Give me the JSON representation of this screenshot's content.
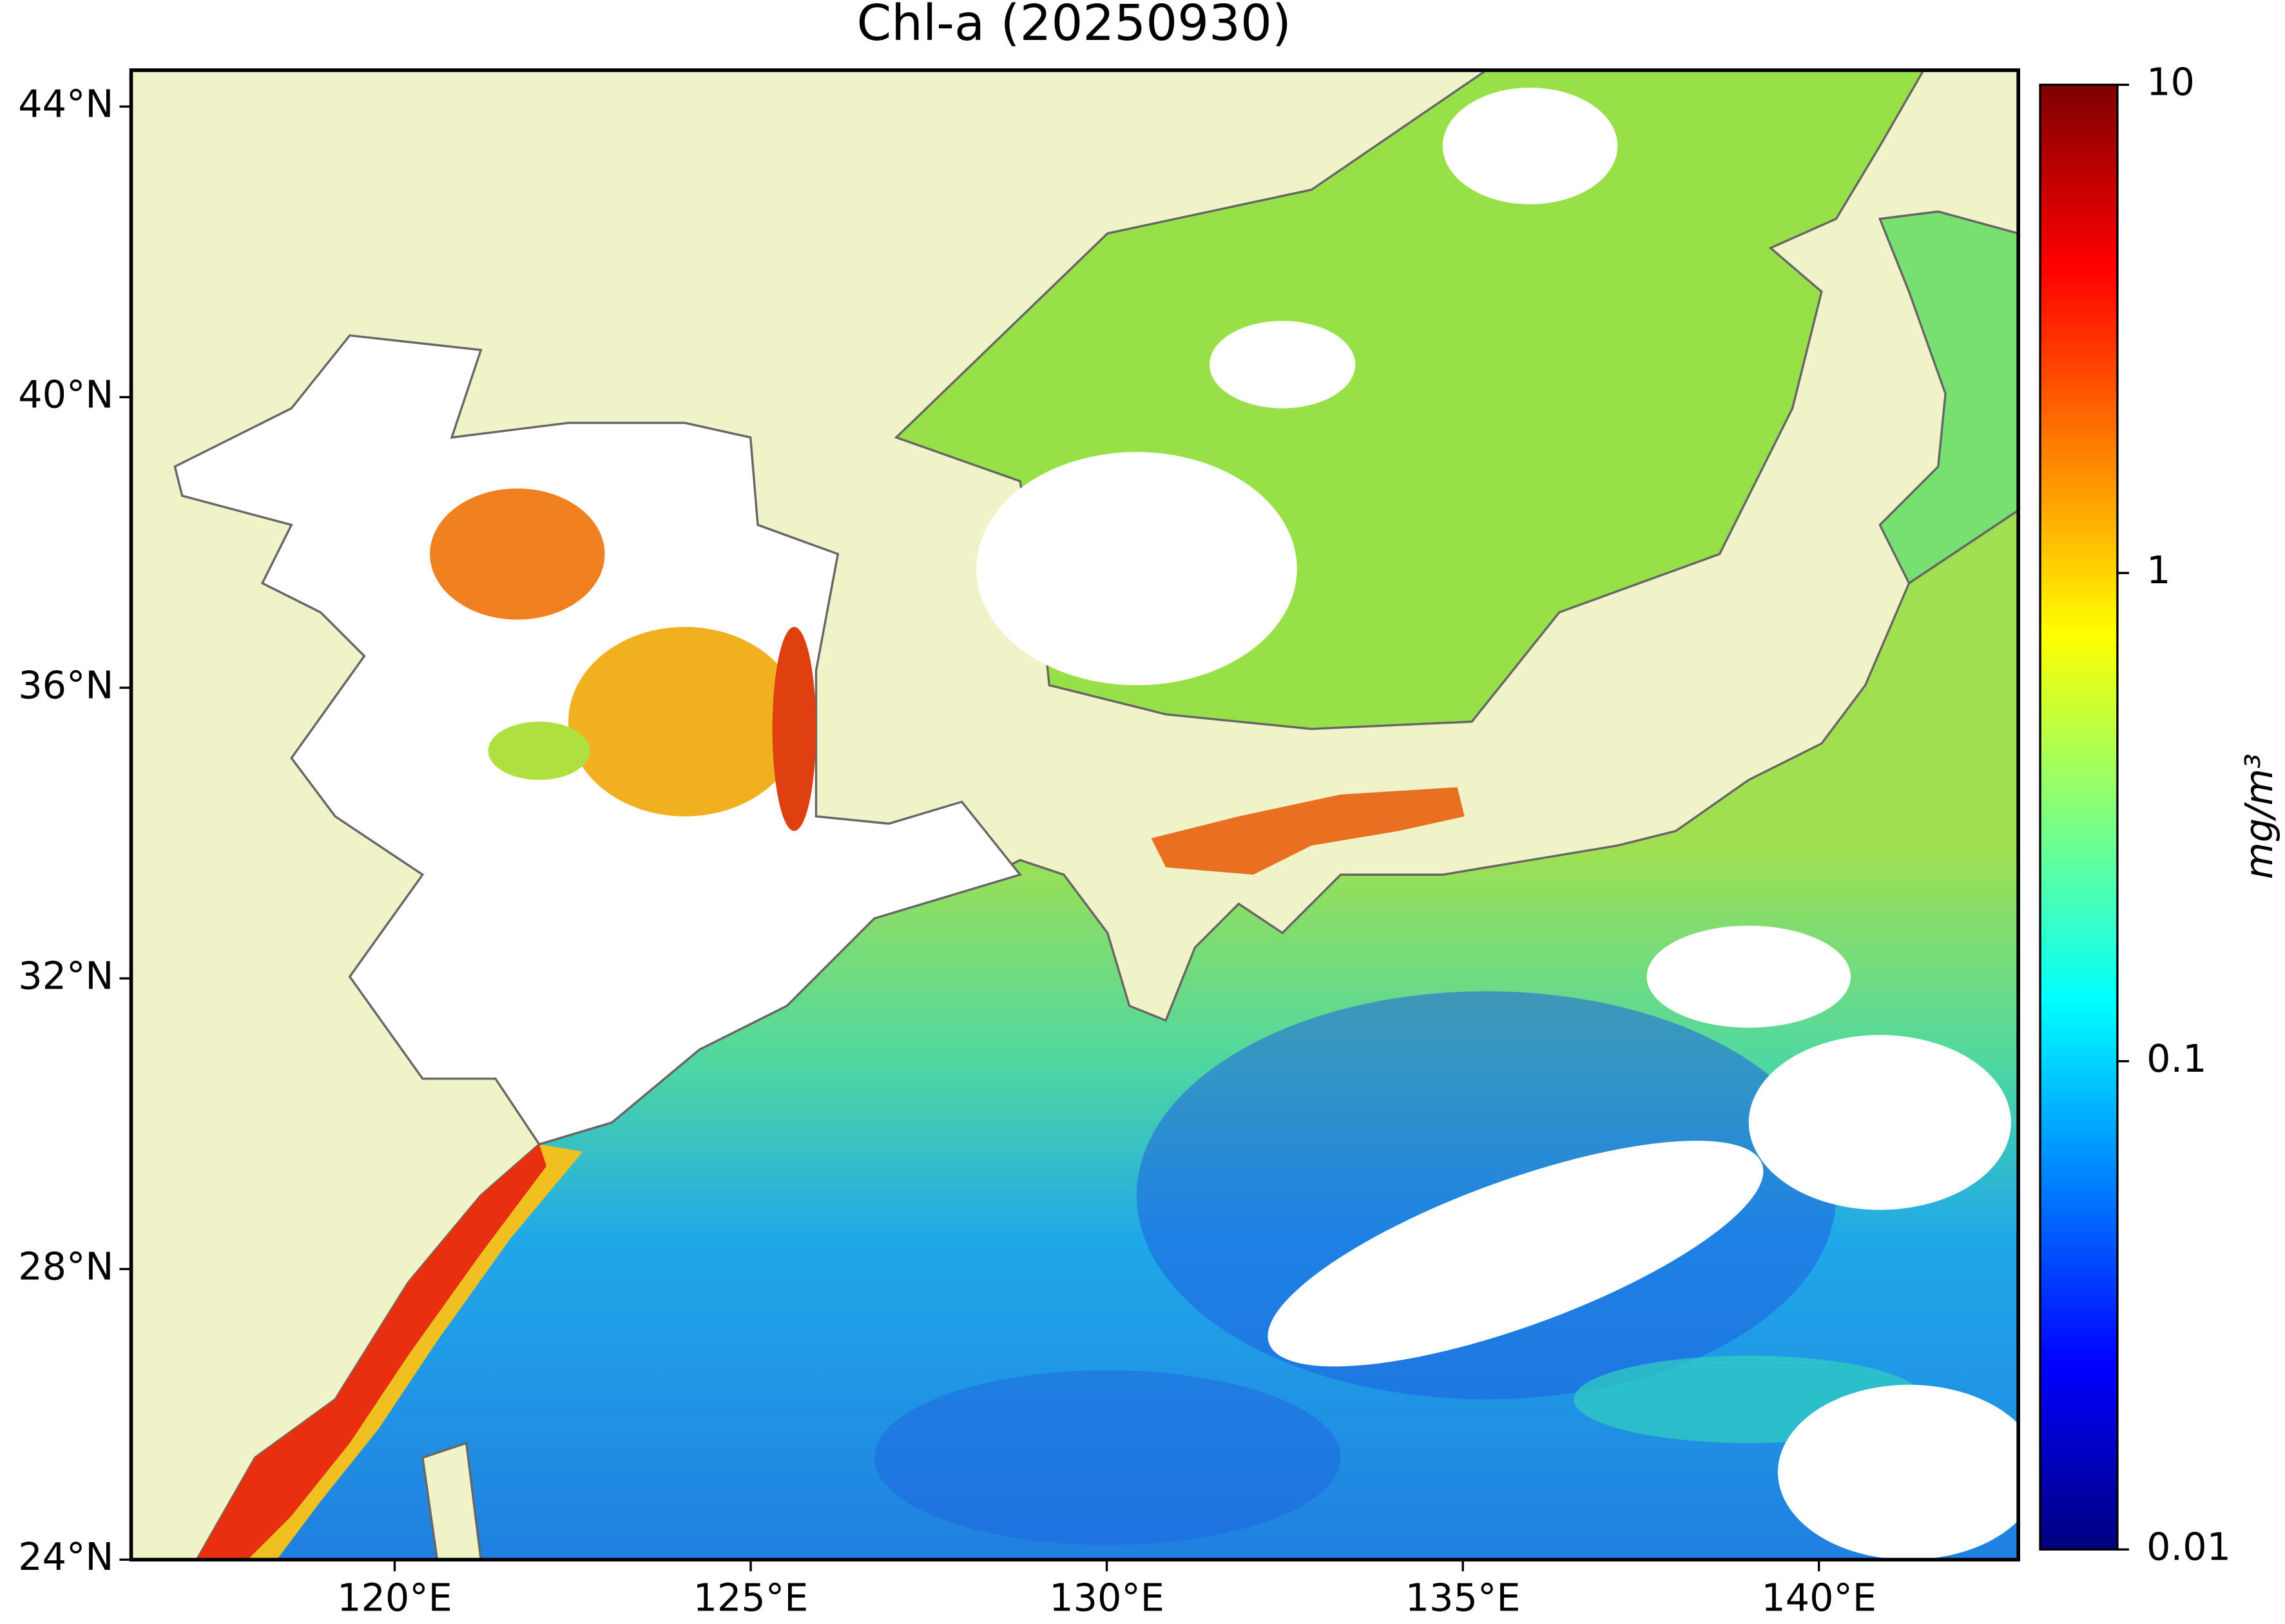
{
  "chart_data": {
    "type": "map",
    "title": "Chl-a (20250930)",
    "xlim": [
      116.3,
      142.8
    ],
    "ylim": [
      24,
      44.5
    ],
    "xticks": [
      {
        "value": 120,
        "label": "120°E"
      },
      {
        "value": 125,
        "label": "125°E"
      },
      {
        "value": 130,
        "label": "130°E"
      },
      {
        "value": 135,
        "label": "135°E"
      },
      {
        "value": 140,
        "label": "140°E"
      }
    ],
    "yticks": [
      {
        "value": 24,
        "label": "24°N"
      },
      {
        "value": 28,
        "label": "28°N"
      },
      {
        "value": 32,
        "label": "32°N"
      },
      {
        "value": 36,
        "label": "36°N"
      },
      {
        "value": 40,
        "label": "40°N"
      },
      {
        "value": 44,
        "label": "44°N"
      }
    ],
    "land_color": "#f0f2c8",
    "colorbar": {
      "label": "mg/m³",
      "lim": [
        0.01,
        10
      ],
      "ticks": [
        0.01,
        0.1,
        1,
        10
      ],
      "scale": "log",
      "colormap": "jet"
    }
  }
}
